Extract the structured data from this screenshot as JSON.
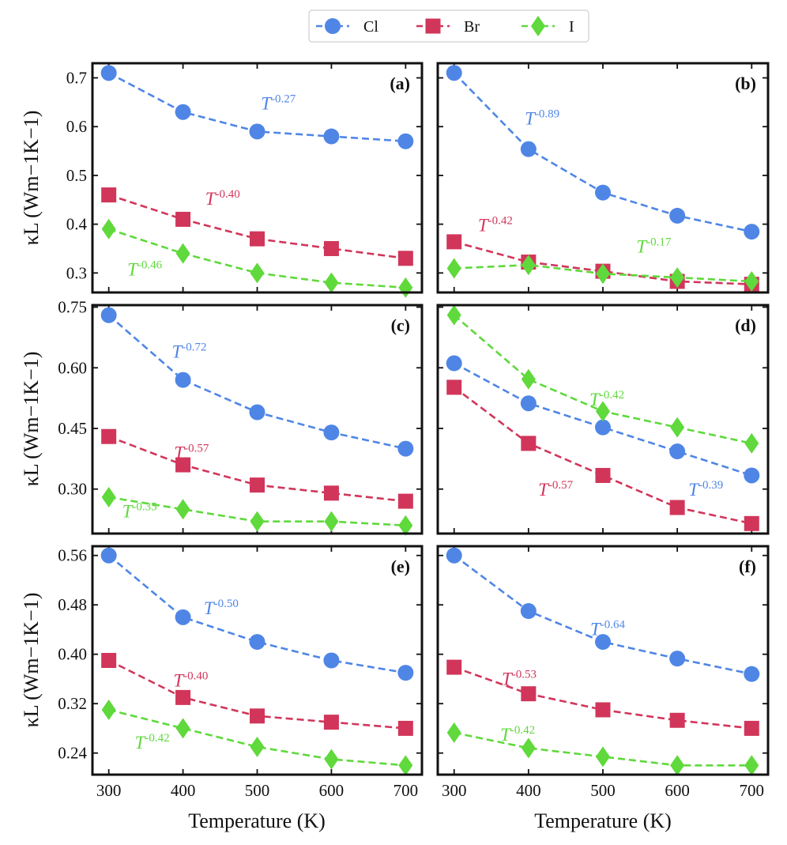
{
  "colors": {
    "Cl": "#4f86e6",
    "Br": "#d1365a",
    "I": "#5fd93c"
  },
  "legend": {
    "items": [
      {
        "key": "Cl",
        "label": "Cl",
        "marker": "circle"
      },
      {
        "key": "Br",
        "label": "Br",
        "marker": "square"
      },
      {
        "key": "I",
        "label": "I",
        "marker": "diamond"
      }
    ]
  },
  "xlabel": "Temperature (K)",
  "ylabel": "κL (Wm−1K−1)",
  "chart_data": [
    {
      "id": "a",
      "label": "(a)",
      "type": "line",
      "x": [
        300,
        400,
        500,
        600,
        700
      ],
      "ylim": [
        0.26,
        0.73
      ],
      "yticks": [
        "0.3",
        "0.4",
        "0.5",
        "0.6",
        "0.7"
      ],
      "series": [
        {
          "name": "Cl",
          "values": [
            0.71,
            0.63,
            0.59,
            0.58,
            0.57
          ]
        },
        {
          "name": "Br",
          "values": [
            0.46,
            0.41,
            0.37,
            0.35,
            0.33
          ]
        },
        {
          "name": "I",
          "values": [
            0.39,
            0.34,
            0.3,
            0.28,
            0.27
          ]
        }
      ],
      "annotations": [
        {
          "series": "Cl",
          "base": "T",
          "exp": "-0.27",
          "x": 505,
          "y": 0.635
        },
        {
          "series": "Br",
          "base": "T",
          "exp": "-0.40",
          "x": 430,
          "y": 0.44
        },
        {
          "series": "I",
          "base": "T",
          "exp": "-0.46",
          "x": 325,
          "y": 0.295
        }
      ]
    },
    {
      "id": "b",
      "label": "(b)",
      "type": "line",
      "x": [
        300,
        400,
        500,
        600,
        700
      ],
      "ylim": [
        0.255,
        0.73
      ],
      "yticks": [],
      "series": [
        {
          "name": "Cl",
          "values": [
            0.71,
            0.552,
            0.462,
            0.414,
            0.381
          ]
        },
        {
          "name": "Br",
          "values": [
            0.36,
            0.318,
            0.299,
            0.278,
            0.272
          ]
        },
        {
          "name": "I",
          "values": [
            0.305,
            0.312,
            0.294,
            0.286,
            0.278
          ]
        }
      ],
      "annotations": [
        {
          "series": "Cl",
          "base": "T",
          "exp": "-0.89",
          "x": 395,
          "y": 0.603
        },
        {
          "series": "Br",
          "base": "T",
          "exp": "-0.42",
          "x": 332,
          "y": 0.382
        },
        {
          "series": "I",
          "base": "T",
          "exp": "-0.17",
          "x": 545,
          "y": 0.338
        }
      ]
    },
    {
      "id": "c",
      "label": "(c)",
      "type": "line",
      "x": [
        300,
        400,
        500,
        600,
        700
      ],
      "ylim": [
        0.19,
        0.755
      ],
      "yticks": [
        "0.30",
        "0.45",
        "0.60",
        "0.75"
      ],
      "series": [
        {
          "name": "Cl",
          "values": [
            0.73,
            0.57,
            0.49,
            0.44,
            0.4
          ]
        },
        {
          "name": "Br",
          "values": [
            0.43,
            0.36,
            0.31,
            0.29,
            0.27
          ]
        },
        {
          "name": "I",
          "values": [
            0.28,
            0.25,
            0.22,
            0.22,
            0.21
          ]
        }
      ],
      "annotations": [
        {
          "series": "Cl",
          "base": "T",
          "exp": "-0.72",
          "x": 385,
          "y": 0.625
        },
        {
          "series": "Br",
          "base": "T",
          "exp": "-0.57",
          "x": 388,
          "y": 0.375
        },
        {
          "series": "I",
          "base": "T",
          "exp": "-0.35",
          "x": 318,
          "y": 0.23
        }
      ]
    },
    {
      "id": "d",
      "label": "(d)",
      "type": "line",
      "x": [
        300,
        400,
        500,
        600,
        700
      ],
      "ylim": [
        0.185,
        0.755
      ],
      "yticks": [],
      "series": [
        {
          "name": "Cl",
          "values": [
            0.61,
            0.51,
            0.45,
            0.39,
            0.33
          ]
        },
        {
          "name": "Br",
          "values": [
            0.55,
            0.41,
            0.33,
            0.25,
            0.21
          ]
        },
        {
          "name": "I",
          "values": [
            0.73,
            0.57,
            0.49,
            0.45,
            0.41
          ]
        }
      ],
      "annotations": [
        {
          "series": "Cl",
          "base": "T",
          "exp": "-0.39",
          "x": 615,
          "y": 0.28
        },
        {
          "series": "Br",
          "base": "T",
          "exp": "-0.57",
          "x": 413,
          "y": 0.28
        },
        {
          "series": "I",
          "base": "T",
          "exp": "-0.42",
          "x": 482,
          "y": 0.505
        }
      ]
    },
    {
      "id": "e",
      "label": "(e)",
      "type": "line",
      "x": [
        300,
        400,
        500,
        600,
        700
      ],
      "ylim": [
        0.205,
        0.575
      ],
      "yticks": [
        "0.24",
        "0.32",
        "0.40",
        "0.48",
        "0.56"
      ],
      "series": [
        {
          "name": "Cl",
          "values": [
            0.56,
            0.46,
            0.42,
            0.39,
            0.37
          ]
        },
        {
          "name": "Br",
          "values": [
            0.39,
            0.33,
            0.3,
            0.29,
            0.28
          ]
        },
        {
          "name": "I",
          "values": [
            0.31,
            0.28,
            0.25,
            0.23,
            0.22
          ]
        }
      ],
      "annotations": [
        {
          "series": "Cl",
          "base": "T",
          "exp": "-0.50",
          "x": 428,
          "y": 0.465
        },
        {
          "series": "Br",
          "base": "T",
          "exp": "-0.40",
          "x": 387,
          "y": 0.348
        },
        {
          "series": "I",
          "base": "T",
          "exp": "-0.42",
          "x": 335,
          "y": 0.247
        }
      ]
    },
    {
      "id": "f",
      "label": "(f)",
      "type": "line",
      "x": [
        300,
        400,
        500,
        600,
        700
      ],
      "ylim": [
        0.205,
        0.575
      ],
      "yticks": [],
      "series": [
        {
          "name": "Cl",
          "values": [
            0.56,
            0.47,
            0.42,
            0.393,
            0.368
          ]
        },
        {
          "name": "Br",
          "values": [
            0.379,
            0.336,
            0.31,
            0.293,
            0.28
          ]
        },
        {
          "name": "I",
          "values": [
            0.273,
            0.248,
            0.234,
            0.22,
            0.22
          ]
        }
      ],
      "annotations": [
        {
          "series": "Cl",
          "base": "T",
          "exp": "-0.64",
          "x": 483,
          "y": 0.431
        },
        {
          "series": "Br",
          "base": "T",
          "exp": "-0.53",
          "x": 364,
          "y": 0.35
        },
        {
          "series": "I",
          "base": "T",
          "exp": "-0.42",
          "x": 362,
          "y": 0.26
        }
      ]
    }
  ]
}
